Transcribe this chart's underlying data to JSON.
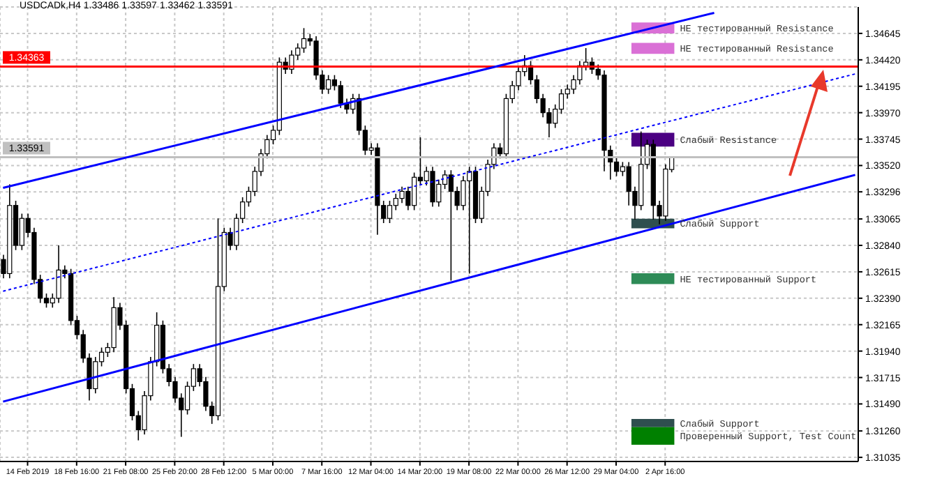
{
  "chart_data": {
    "type": "candlestick",
    "title": "USDCADk,H4 1.33486 1.33597 1.33462 1.33591",
    "color": "#000000",
    "categories": [
      null,
      null,
      null,
      null,
      "14 Feb 2019",
      null,
      null,
      null,
      null,
      null,
      null,
      null,
      "18 Feb 16:00",
      null,
      null,
      null,
      null,
      null,
      null,
      null,
      "21 Feb 08:00",
      null,
      null,
      null,
      null,
      null,
      null,
      null,
      "25 Feb 20:00",
      null,
      null,
      null,
      null,
      null,
      null,
      null,
      "28 Feb 12:00",
      null,
      null,
      null,
      null,
      null,
      null,
      null,
      "5 Mar 00:00",
      null,
      null,
      null,
      null,
      null,
      null,
      null,
      "7 Mar 16:00",
      null,
      null,
      null,
      null,
      null,
      null,
      null,
      "12 Mar 04:00",
      null,
      null,
      null,
      null,
      null,
      null,
      null,
      "14 Mar 20:00",
      null,
      null,
      null,
      null,
      null,
      null,
      null,
      "19 Mar 08:00",
      null,
      null,
      null,
      null,
      null,
      null,
      null,
      "22 Mar 00:00",
      null,
      null,
      null,
      null,
      null,
      null,
      null,
      "26 Mar 12:00",
      null,
      null,
      null,
      null,
      null,
      null,
      null,
      "29 Mar 04:00",
      null,
      null,
      null,
      null,
      null,
      null,
      null,
      "2 Apr 16:00",
      null,
      null,
      null,
      null,
      null,
      null,
      null,
      null,
      null,
      null,
      null,
      null,
      null,
      null,
      null,
      null,
      null,
      null,
      null,
      null,
      null,
      null,
      null,
      null,
      null,
      null,
      null,
      null,
      null,
      null,
      null
    ],
    "ohlc": [
      [
        1.3272,
        1.3276,
        1.3256,
        1.326
      ],
      [
        1.326,
        1.3336,
        1.3256,
        1.3318
      ],
      [
        1.3318,
        1.3322,
        1.328,
        1.3284
      ],
      [
        1.3284,
        1.3311,
        1.328,
        1.3307
      ],
      [
        1.3307,
        1.3311,
        1.3291,
        1.3295
      ],
      [
        1.3295,
        1.3299,
        1.3251,
        1.3255
      ],
      [
        1.3255,
        1.3259,
        1.3235,
        1.3239
      ],
      [
        1.3239,
        1.3243,
        1.3231,
        1.3235
      ],
      [
        1.3235,
        1.3243,
        1.3231,
        1.3239
      ],
      [
        1.3239,
        1.3284,
        1.3235,
        1.3263
      ],
      [
        1.3263,
        1.3267,
        1.3256,
        1.326
      ],
      [
        1.326,
        1.3264,
        1.3216,
        1.322
      ],
      [
        1.322,
        1.3224,
        1.3204,
        1.3208
      ],
      [
        1.3208,
        1.3212,
        1.3184,
        1.3188
      ],
      [
        1.3188,
        1.3192,
        1.3152,
        1.3162
      ],
      [
        1.3162,
        1.3189,
        1.3158,
        1.3185
      ],
      [
        1.3185,
        1.3197,
        1.3181,
        1.3193
      ],
      [
        1.3193,
        1.3201,
        1.3189,
        1.3197
      ],
      [
        1.3197,
        1.324,
        1.3193,
        1.3231
      ],
      [
        1.3231,
        1.3235,
        1.3212,
        1.3216
      ],
      [
        1.3216,
        1.322,
        1.3158,
        1.3162
      ],
      [
        1.3162,
        1.3166,
        1.3135,
        1.3139
      ],
      [
        1.3139,
        1.3143,
        1.3118,
        1.3127
      ],
      [
        1.3127,
        1.316,
        1.3123,
        1.3156
      ],
      [
        1.3156,
        1.3189,
        1.3152,
        1.3185
      ],
      [
        1.3185,
        1.3227,
        1.3181,
        1.3216
      ],
      [
        1.3216,
        1.322,
        1.3175,
        1.3179
      ],
      [
        1.3179,
        1.3183,
        1.3164,
        1.3168
      ],
      [
        1.3168,
        1.3172,
        1.315,
        1.3154
      ],
      [
        1.3154,
        1.3158,
        1.3121,
        1.3144
      ],
      [
        1.3144,
        1.3168,
        1.314,
        1.3164
      ],
      [
        1.3164,
        1.3183,
        1.316,
        1.3179
      ],
      [
        1.3179,
        1.3183,
        1.3164,
        1.3168
      ],
      [
        1.3168,
        1.3172,
        1.3143,
        1.3147
      ],
      [
        1.3147,
        1.3151,
        1.3132,
        1.3139
      ],
      [
        1.3139,
        1.3307,
        1.3135,
        1.3249
      ],
      [
        1.3249,
        1.3299,
        1.3245,
        1.3295
      ],
      [
        1.3295,
        1.3299,
        1.328,
        1.3284
      ],
      [
        1.3284,
        1.3311,
        1.328,
        1.3307
      ],
      [
        1.3307,
        1.3325,
        1.3303,
        1.3321
      ],
      [
        1.3321,
        1.3334,
        1.3317,
        1.333
      ],
      [
        1.333,
        1.3351,
        1.3326,
        1.3347
      ],
      [
        1.3347,
        1.3366,
        1.3343,
        1.3362
      ],
      [
        1.3362,
        1.3378,
        1.3358,
        1.3374
      ],
      [
        1.3374,
        1.3386,
        1.337,
        1.3382
      ],
      [
        1.3382,
        1.3444,
        1.3378,
        1.344
      ],
      [
        1.344,
        1.3444,
        1.343,
        1.3434
      ],
      [
        1.3434,
        1.345,
        1.343,
        1.3446
      ],
      [
        1.3446,
        1.3456,
        1.3442,
        1.3452
      ],
      [
        1.3452,
        1.3469,
        1.3448,
        1.346
      ],
      [
        1.346,
        1.3464,
        1.3454,
        1.3458
      ],
      [
        1.3458,
        1.3462,
        1.3425,
        1.3429
      ],
      [
        1.3429,
        1.3433,
        1.3413,
        1.3417
      ],
      [
        1.3417,
        1.3429,
        1.3413,
        1.3425
      ],
      [
        1.3425,
        1.3429,
        1.3416,
        1.342
      ],
      [
        1.342,
        1.3424,
        1.3401,
        1.3405
      ],
      [
        1.3405,
        1.3409,
        1.3396,
        1.34
      ],
      [
        1.34,
        1.3413,
        1.3396,
        1.3409
      ],
      [
        1.3409,
        1.3413,
        1.3378,
        1.3382
      ],
      [
        1.3382,
        1.3386,
        1.3361,
        1.3365
      ],
      [
        1.3365,
        1.3371,
        1.3361,
        1.3367
      ],
      [
        1.3367,
        1.3371,
        1.3293,
        1.3318
      ],
      [
        1.3318,
        1.3322,
        1.3303,
        1.3307
      ],
      [
        1.3307,
        1.3322,
        1.3303,
        1.3318
      ],
      [
        1.3318,
        1.3328,
        1.3314,
        1.3324
      ],
      [
        1.3324,
        1.3334,
        1.332,
        1.333
      ],
      [
        1.333,
        1.3334,
        1.3314,
        1.3318
      ],
      [
        1.3318,
        1.3346,
        1.3314,
        1.3342
      ],
      [
        1.3342,
        1.3376,
        1.3335,
        1.3339
      ],
      [
        1.3339,
        1.3351,
        1.3335,
        1.3347
      ],
      [
        1.3347,
        1.3351,
        1.3317,
        1.3321
      ],
      [
        1.3321,
        1.334,
        1.3317,
        1.3336
      ],
      [
        1.3336,
        1.3348,
        1.3332,
        1.3344
      ],
      [
        1.3344,
        1.3348,
        1.3254,
        1.333
      ],
      [
        1.333,
        1.3334,
        1.3314,
        1.3318
      ],
      [
        1.3318,
        1.3343,
        1.3314,
        1.3339
      ],
      [
        1.3339,
        1.3351,
        1.326,
        1.3347
      ],
      [
        1.3347,
        1.3351,
        1.3303,
        1.3307
      ],
      [
        1.3307,
        1.3334,
        1.3303,
        1.333
      ],
      [
        1.333,
        1.3357,
        1.3326,
        1.3353
      ],
      [
        1.3353,
        1.3371,
        1.3349,
        1.3367
      ],
      [
        1.3367,
        1.3371,
        1.3358,
        1.3362
      ],
      [
        1.3362,
        1.3413,
        1.3358,
        1.3409
      ],
      [
        1.3409,
        1.3424,
        1.3405,
        1.342
      ],
      [
        1.342,
        1.3436,
        1.3416,
        1.3432
      ],
      [
        1.3432,
        1.3446,
        1.3428,
        1.3437
      ],
      [
        1.3437,
        1.3441,
        1.3421,
        1.3425
      ],
      [
        1.3425,
        1.3429,
        1.3405,
        1.3409
      ],
      [
        1.3409,
        1.3413,
        1.3393,
        1.3397
      ],
      [
        1.3397,
        1.3401,
        1.3376,
        1.3388
      ],
      [
        1.3388,
        1.3404,
        1.3384,
        1.34
      ],
      [
        1.34,
        1.3417,
        1.3396,
        1.3413
      ],
      [
        1.3413,
        1.3421,
        1.3409,
        1.3417
      ],
      [
        1.3417,
        1.3429,
        1.3413,
        1.3425
      ],
      [
        1.3425,
        1.3441,
        1.3421,
        1.3437
      ],
      [
        1.3437,
        1.3452,
        1.3433,
        1.344
      ],
      [
        1.344,
        1.3444,
        1.343,
        1.3434
      ],
      [
        1.3434,
        1.3438,
        1.3425,
        1.3429
      ],
      [
        1.3429,
        1.3433,
        1.3347,
        1.3365
      ],
      [
        1.3365,
        1.3369,
        1.334,
        1.3355
      ],
      [
        1.3355,
        1.3359,
        1.3343,
        1.3347
      ],
      [
        1.3347,
        1.3355,
        1.3343,
        1.3351
      ],
      [
        1.3351,
        1.3355,
        1.3318,
        1.333
      ],
      [
        1.333,
        1.3334,
        1.3306,
        1.3318
      ],
      [
        1.3318,
        1.3381,
        1.3314,
        1.3353
      ],
      [
        1.3353,
        1.3374,
        1.3349,
        1.337
      ],
      [
        1.337,
        1.3374,
        1.3306,
        1.3318
      ],
      [
        1.3318,
        1.3322,
        1.3302,
        1.3309
      ],
      [
        1.3309,
        1.3353,
        1.3305,
        1.3349
      ],
      [
        1.33486,
        1.33597,
        1.33462,
        1.33591
      ],
      null,
      null,
      null,
      null,
      null,
      null,
      null,
      null,
      null,
      null,
      null,
      null,
      null,
      null,
      null,
      null,
      null,
      null,
      null,
      null,
      null,
      null,
      null,
      null,
      null,
      null,
      null,
      null,
      null,
      null
    ],
    "series": [
      {
        "type": "line",
        "color": "#0000ff",
        "line_style": "solid",
        "values": [
          1.3333,
          null,
          null,
          null,
          null,
          null,
          null,
          null,
          null,
          null,
          null,
          null,
          null,
          null,
          null,
          null,
          null,
          null,
          null,
          null,
          null,
          null,
          null,
          null,
          null,
          null,
          null,
          null,
          null,
          null,
          null,
          null,
          null,
          null,
          null,
          null,
          null,
          null,
          null,
          null,
          null,
          null,
          null,
          null,
          null,
          null,
          null,
          null,
          null,
          null,
          null,
          null,
          null,
          null,
          null,
          null,
          null,
          null,
          null,
          null,
          null,
          null,
          null,
          null,
          null,
          null,
          null,
          null,
          null,
          null,
          null,
          null,
          null,
          null,
          null,
          null,
          null,
          null,
          null,
          null,
          null,
          null,
          null,
          null,
          null,
          null,
          null,
          null,
          null,
          null,
          null,
          null,
          null,
          null,
          null,
          null,
          null,
          null,
          null,
          null,
          null,
          null,
          null,
          null,
          null,
          null,
          null,
          null,
          null,
          null,
          null,
          null,
          null,
          null,
          null,
          null,
          1.3482,
          null,
          null,
          null,
          null,
          null,
          null,
          null,
          null,
          null,
          null,
          null,
          null,
          null,
          null,
          null,
          null,
          null,
          null,
          null,
          null,
          null,
          null,
          null
        ]
      },
      {
        "type": "line",
        "color": "#0000ff",
        "line_style": "solid",
        "values": [
          1.3151,
          null,
          null,
          null,
          null,
          null,
          null,
          null,
          null,
          null,
          null,
          null,
          null,
          null,
          null,
          null,
          null,
          null,
          null,
          null,
          null,
          null,
          null,
          null,
          null,
          null,
          null,
          null,
          null,
          null,
          null,
          null,
          null,
          null,
          null,
          null,
          null,
          null,
          null,
          null,
          null,
          null,
          null,
          null,
          null,
          null,
          null,
          null,
          null,
          null,
          null,
          null,
          null,
          null,
          null,
          null,
          null,
          null,
          null,
          null,
          null,
          null,
          null,
          null,
          null,
          null,
          null,
          null,
          null,
          null,
          null,
          null,
          null,
          null,
          null,
          null,
          null,
          null,
          null,
          null,
          null,
          null,
          null,
          null,
          null,
          null,
          null,
          null,
          null,
          null,
          null,
          null,
          null,
          null,
          null,
          null,
          null,
          null,
          null,
          null,
          null,
          null,
          null,
          null,
          null,
          null,
          null,
          null,
          null,
          null,
          null,
          null,
          null,
          null,
          null,
          null,
          null,
          null,
          null,
          null,
          null,
          null,
          null,
          null,
          null,
          null,
          null,
          null,
          null,
          null,
          null,
          null,
          null,
          null,
          null,
          null,
          null,
          null,
          null,
          1.3344
        ]
      },
      {
        "type": "line",
        "color": "#0000ff",
        "line_style": "dotted",
        "values": [
          1.3245,
          null,
          null,
          null,
          null,
          null,
          null,
          null,
          null,
          null,
          null,
          null,
          null,
          null,
          null,
          null,
          null,
          null,
          null,
          null,
          null,
          null,
          null,
          null,
          null,
          null,
          null,
          null,
          null,
          null,
          null,
          null,
          null,
          null,
          null,
          null,
          null,
          null,
          null,
          null,
          null,
          null,
          null,
          null,
          null,
          null,
          null,
          null,
          null,
          null,
          null,
          null,
          null,
          null,
          null,
          null,
          null,
          null,
          null,
          null,
          null,
          null,
          null,
          null,
          null,
          null,
          null,
          null,
          null,
          null,
          null,
          null,
          null,
          null,
          null,
          null,
          null,
          null,
          null,
          null,
          null,
          null,
          null,
          null,
          null,
          null,
          null,
          null,
          null,
          null,
          null,
          null,
          null,
          null,
          null,
          null,
          null,
          null,
          null,
          null,
          null,
          null,
          null,
          null,
          null,
          null,
          null,
          null,
          null,
          null,
          null,
          null,
          null,
          null,
          null,
          null,
          null,
          null,
          null,
          null,
          null,
          null,
          null,
          null,
          null,
          null,
          null,
          null,
          null,
          null,
          null,
          null,
          null,
          null,
          null,
          null,
          null,
          null,
          null,
          1.343
        ]
      }
    ],
    "bands": [
      {
        "axis": "y",
        "from": 1.34645,
        "to": 1.34738,
        "label": "НЕ тестированный Resistance",
        "color": "#da70d6"
      },
      {
        "axis": "y",
        "from": 1.34471,
        "to": 1.34564,
        "label": "НЕ тестированный Resistance",
        "color": "#da70d6"
      },
      {
        "axis": "y",
        "from": 1.33682,
        "to": 1.33798,
        "label": "Слабый Resistance",
        "color": "#4b0082"
      },
      {
        "axis": "y",
        "from": 1.32986,
        "to": 1.33067,
        "label": "Слабый Support",
        "color": "#2f4f4f"
      },
      {
        "axis": "y",
        "from": 1.3251,
        "to": 1.32603,
        "label": "НЕ тестированный Support",
        "color": "#2e8b57"
      },
      {
        "axis": "y",
        "from": 1.31293,
        "to": 1.31362,
        "label": "Слабый Support",
        "color": "#2f4f4f"
      },
      {
        "axis": "y",
        "from": 1.31142,
        "to": 1.31293,
        "label": "Проверенный Support, Test Count",
        "color": "#008000"
      }
    ],
    "ref_lines": [
      {
        "axis": "y",
        "value": 1.34363,
        "label": "1.34363",
        "color": "#ff0000"
      },
      {
        "axis": "y",
        "value": 1.33591,
        "label": "1.33591",
        "color": "#c0c0c0"
      }
    ],
    "ylim": [
      1.31,
      1.3487
    ],
    "yticks": [
      1.31035,
      {
        "value": 1.3126,
        "label": "1.31260"
      },
      {
        "value": 1.3149,
        "label": "1.31490"
      },
      1.31715,
      {
        "value": 1.3194,
        "label": "1.31940"
      },
      1.32165,
      {
        "value": 1.3239,
        "label": "1.32390"
      },
      1.32615,
      {
        "value": 1.3284,
        "label": "1.32840"
      },
      1.33065,
      1.33296,
      {
        "value": 1.3352,
        "label": "1.33520"
      },
      1.33745,
      {
        "value": 1.3397,
        "label": "1.33970"
      },
      1.34195,
      {
        "value": 1.3442,
        "label": "1.34420"
      },
      1.34645
    ],
    "grid": true,
    "marker": "none"
  }
}
